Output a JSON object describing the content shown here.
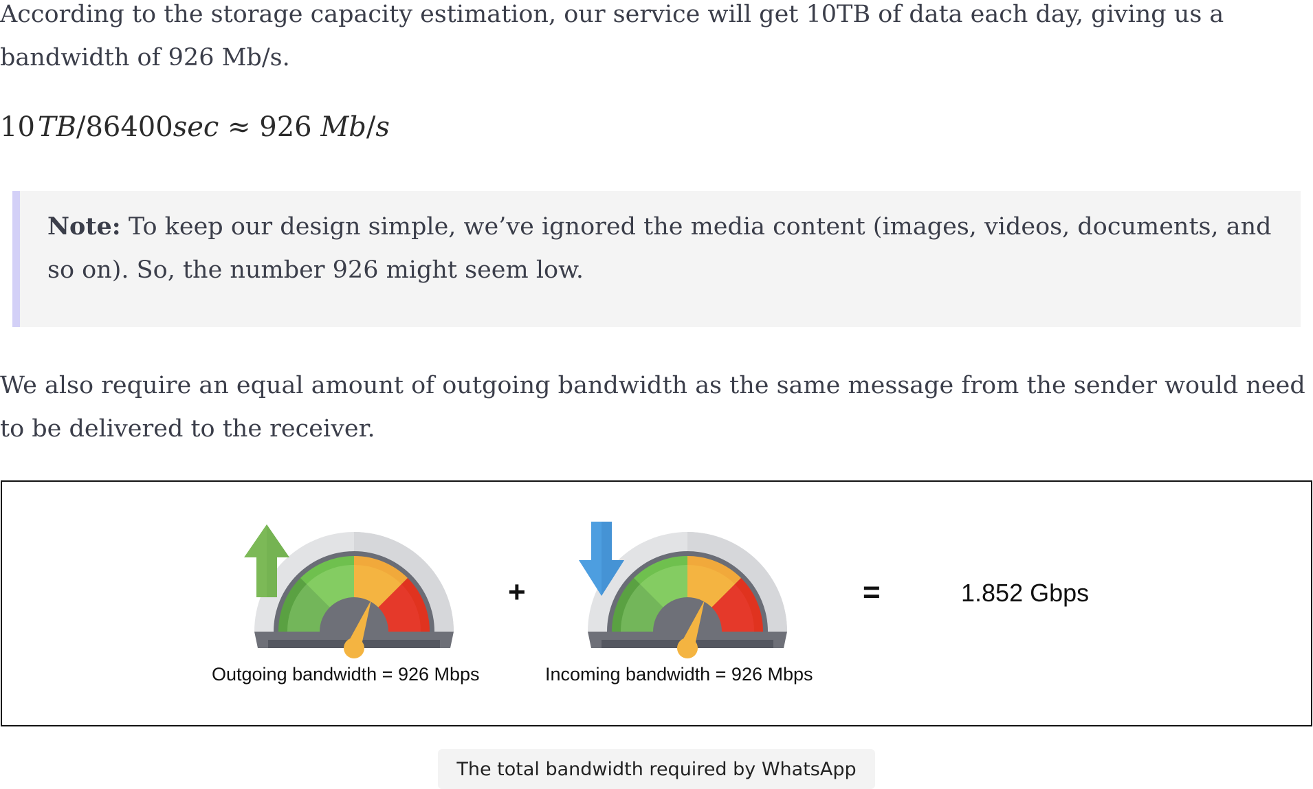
{
  "paragraph1": "According to the storage capacity estimation, our service will get 10TB of data each day, giving us a bandwidth of 926 Mb/s.",
  "formula": {
    "n1": "10",
    "v1": "TB",
    "slash1": "/",
    "n2": "86400",
    "v2": "sec",
    "approx": "≈",
    "n3": "926",
    "v3": "Mb",
    "slash2": "/",
    "v4": "s"
  },
  "note": {
    "label": "Note:",
    "text": " To keep our design simple, we’ve ignored the media content (images, videos, documents, and so on). So, the number 926 might seem low."
  },
  "paragraph2": "We also require an equal amount of outgoing bandwidth as the same message from the sender would need to be delivered to the receiver.",
  "figure": {
    "outgoing_label": "Outgoing bandwidth =  926 Mbps",
    "incoming_label": "Incoming bandwidth =  926 Mbps",
    "plus": "+",
    "equals": "=",
    "total": "1.852 Gbps",
    "arrow_up_color": "#7cb957",
    "arrow_down_color": "#4d9ee0"
  },
  "caption": "The total bandwidth required by WhatsApp"
}
